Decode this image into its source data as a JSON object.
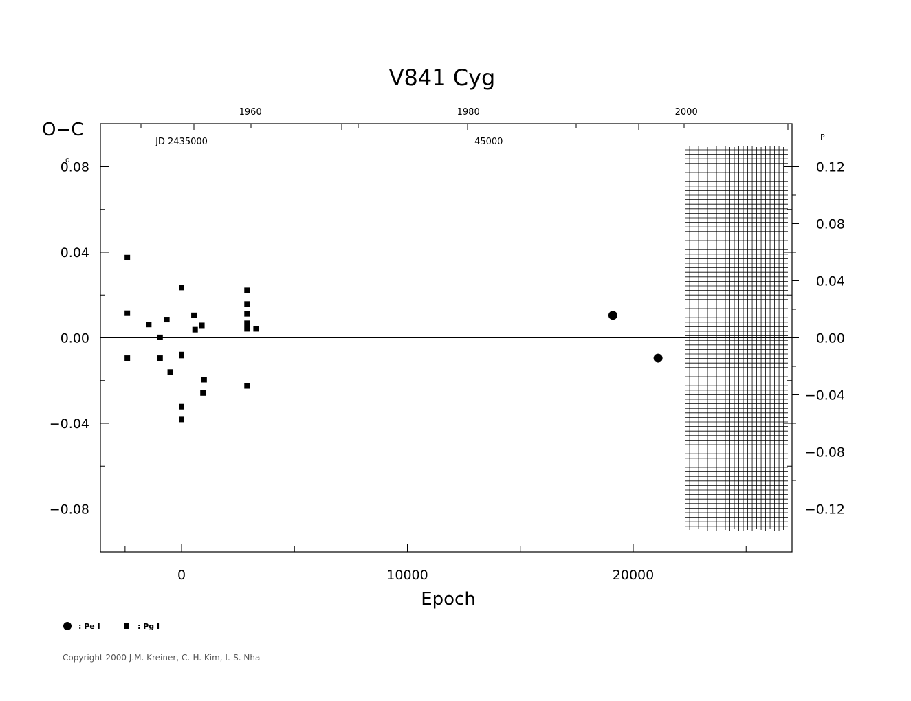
{
  "chart_data": {
    "type": "scatter",
    "title": "V841  Cyg",
    "ylabel": "O−C",
    "ylabel_unit": "d",
    "xlabel": "Epoch",
    "xlim": [
      -3600,
      27000
    ],
    "ylim": [
      -0.1,
      0.1
    ],
    "x_ticks": [
      0,
      10000,
      20000
    ],
    "x_tick_labels": [
      "0",
      "10000",
      "20000"
    ],
    "y_ticks": [
      -0.08,
      -0.04,
      0.0,
      0.04,
      0.08
    ],
    "y_tick_labels": [
      "−0.08",
      "−0.04",
      "0.00",
      "0.04",
      "0.08"
    ],
    "y2_tick_labels": [
      "−0.12",
      "−0.08",
      "−0.04",
      "0.00",
      "0.04",
      "0.08",
      "0.12"
    ],
    "y2_unit": "P",
    "y2_scale": 1.5,
    "top_year_labels": [
      "1960",
      "1980",
      "2000"
    ],
    "top_year_epochs": [
      3050,
      12700,
      22350
    ],
    "top_jd_labels": [
      "JD 2435000",
      "45000"
    ],
    "top_jd_epochs": [
      0,
      13600
    ],
    "hatched_region_x": [
      22300,
      27000
    ],
    "series": [
      {
        "name": "Pe I",
        "marker": "circle",
        "points": [
          [
            19100,
            0.0105
          ],
          [
            21100,
            -0.0095
          ]
        ]
      },
      {
        "name": "Pg I",
        "marker": "square",
        "points": [
          [
            -2400,
            0.0375
          ],
          [
            -2400,
            0.0115
          ],
          [
            -2400,
            -0.0095
          ],
          [
            -1450,
            0.0062
          ],
          [
            -950,
            0.0002
          ],
          [
            -950,
            -0.0095
          ],
          [
            -650,
            0.0085
          ],
          [
            -500,
            -0.016
          ],
          [
            0,
            0.0235
          ],
          [
            0,
            -0.0078
          ],
          [
            0,
            -0.0083
          ],
          [
            0,
            -0.0322
          ],
          [
            0,
            -0.0382
          ],
          [
            550,
            0.0105
          ],
          [
            600,
            0.0038
          ],
          [
            900,
            0.0058
          ],
          [
            950,
            -0.0258
          ],
          [
            1000,
            -0.0196
          ],
          [
            2900,
            0.0222
          ],
          [
            2900,
            0.0158
          ],
          [
            2900,
            0.0112
          ],
          [
            2900,
            0.0068
          ],
          [
            2900,
            0.0042
          ],
          [
            2900,
            -0.0225
          ],
          [
            3300,
            0.0042
          ]
        ]
      }
    ],
    "legend": [
      {
        "marker": "circle",
        "label": ": Pe I"
      },
      {
        "marker": "square",
        "label": ": Pg I"
      }
    ],
    "legend_position": "bottom-left"
  },
  "copyright": "Copyright 2000 J.M. Kreiner, C.-H. Kim, I.-S. Nha"
}
